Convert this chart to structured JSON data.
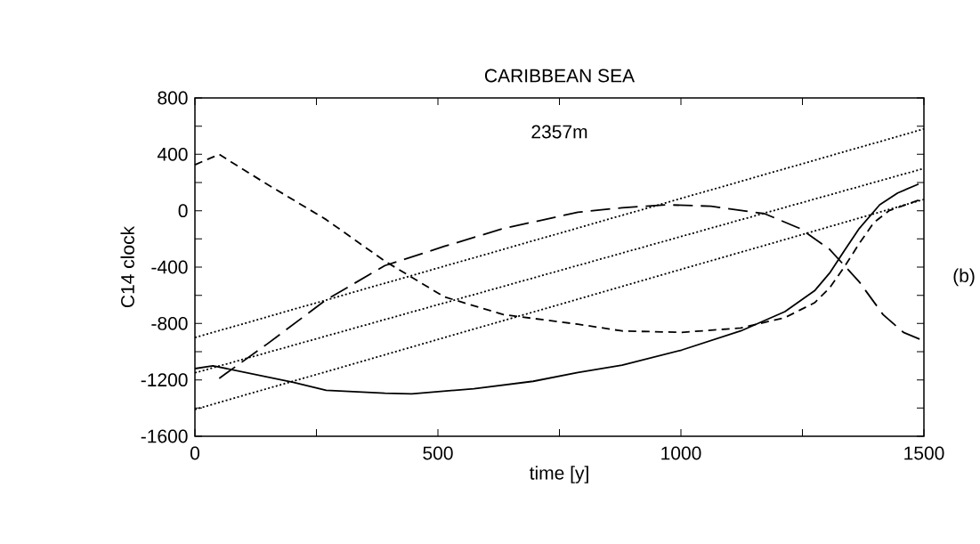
{
  "chart_data": {
    "type": "line",
    "title": "CARIBBEAN SEA",
    "xlabel": "time [y]",
    "ylabel": "C14 clock",
    "annotations": [
      "2357m",
      "(b)"
    ],
    "xlim": [
      0,
      1500
    ],
    "ylim": [
      -1600,
      800
    ],
    "xticks": [
      0,
      {
        "value": 250,
        "label": null
      },
      500,
      {
        "value": 750,
        "label": null
      },
      1000,
      {
        "value": 1250,
        "label": null
      },
      1500
    ],
    "yticks": [
      -1600,
      {
        "value": -1400,
        "label": null
      },
      -1200,
      {
        "value": -1000,
        "label": null
      },
      -800,
      {
        "value": -600,
        "label": null
      },
      -400,
      {
        "value": -200,
        "label": null
      },
      0,
      {
        "value": 200,
        "label": null
      },
      400,
      {
        "value": 600,
        "label": null
      },
      800
    ],
    "grid": false,
    "marker": "none",
    "series": [
      {
        "color": "#000000",
        "line_style": "dotted",
        "x": [
          0,
          1500
        ],
        "values": [
          -900,
          580
        ]
      },
      {
        "color": "#000000",
        "line_style": "dotted",
        "x": [
          0,
          1500
        ],
        "values": [
          -1150,
          300
        ]
      },
      {
        "color": "#000000",
        "line_style": "dotted",
        "x": [
          0,
          1500
        ],
        "values": [
          -1410,
          80
        ]
      },
      {
        "color": "#000000",
        "line_style": "solid",
        "x": [
          0,
          37,
          202,
          270,
          391,
          446,
          574,
          696,
          788,
          879,
          1001,
          1123,
          1214,
          1275,
          1306,
          1336,
          1367,
          1409,
          1446,
          1489
        ],
        "values": [
          -1120,
          -1100,
          -1217,
          -1274,
          -1295,
          -1299,
          -1263,
          -1210,
          -1147,
          -1095,
          -989,
          -853,
          -716,
          -568,
          -442,
          -284,
          -126,
          42,
          126,
          189
        ]
      },
      {
        "color": "#000000",
        "line_style": "dashed",
        "x": [
          0,
          50,
          74,
          148,
          270,
          391,
          513,
          635,
          788,
          879,
          1001,
          1123,
          1214,
          1275,
          1306,
          1336,
          1367,
          1397,
          1428,
          1489
        ],
        "values": [
          326,
          400,
          347,
          189,
          -63,
          -358,
          -611,
          -737,
          -805,
          -853,
          -863,
          -832,
          -758,
          -653,
          -547,
          -400,
          -232,
          -84,
          0,
          74
        ]
      },
      {
        "color": "#000000",
        "line_style": "dashed",
        "x": [
          50,
          148,
          270,
          391,
          513,
          635,
          788,
          879,
          970,
          1062,
          1172,
          1245,
          1306,
          1367,
          1416,
          1458,
          1495
        ],
        "values": [
          -1189,
          -947,
          -632,
          -389,
          -253,
          -126,
          -11,
          21,
          42,
          32,
          -21,
          -126,
          -274,
          -505,
          -737,
          -863,
          -916
        ]
      }
    ]
  }
}
